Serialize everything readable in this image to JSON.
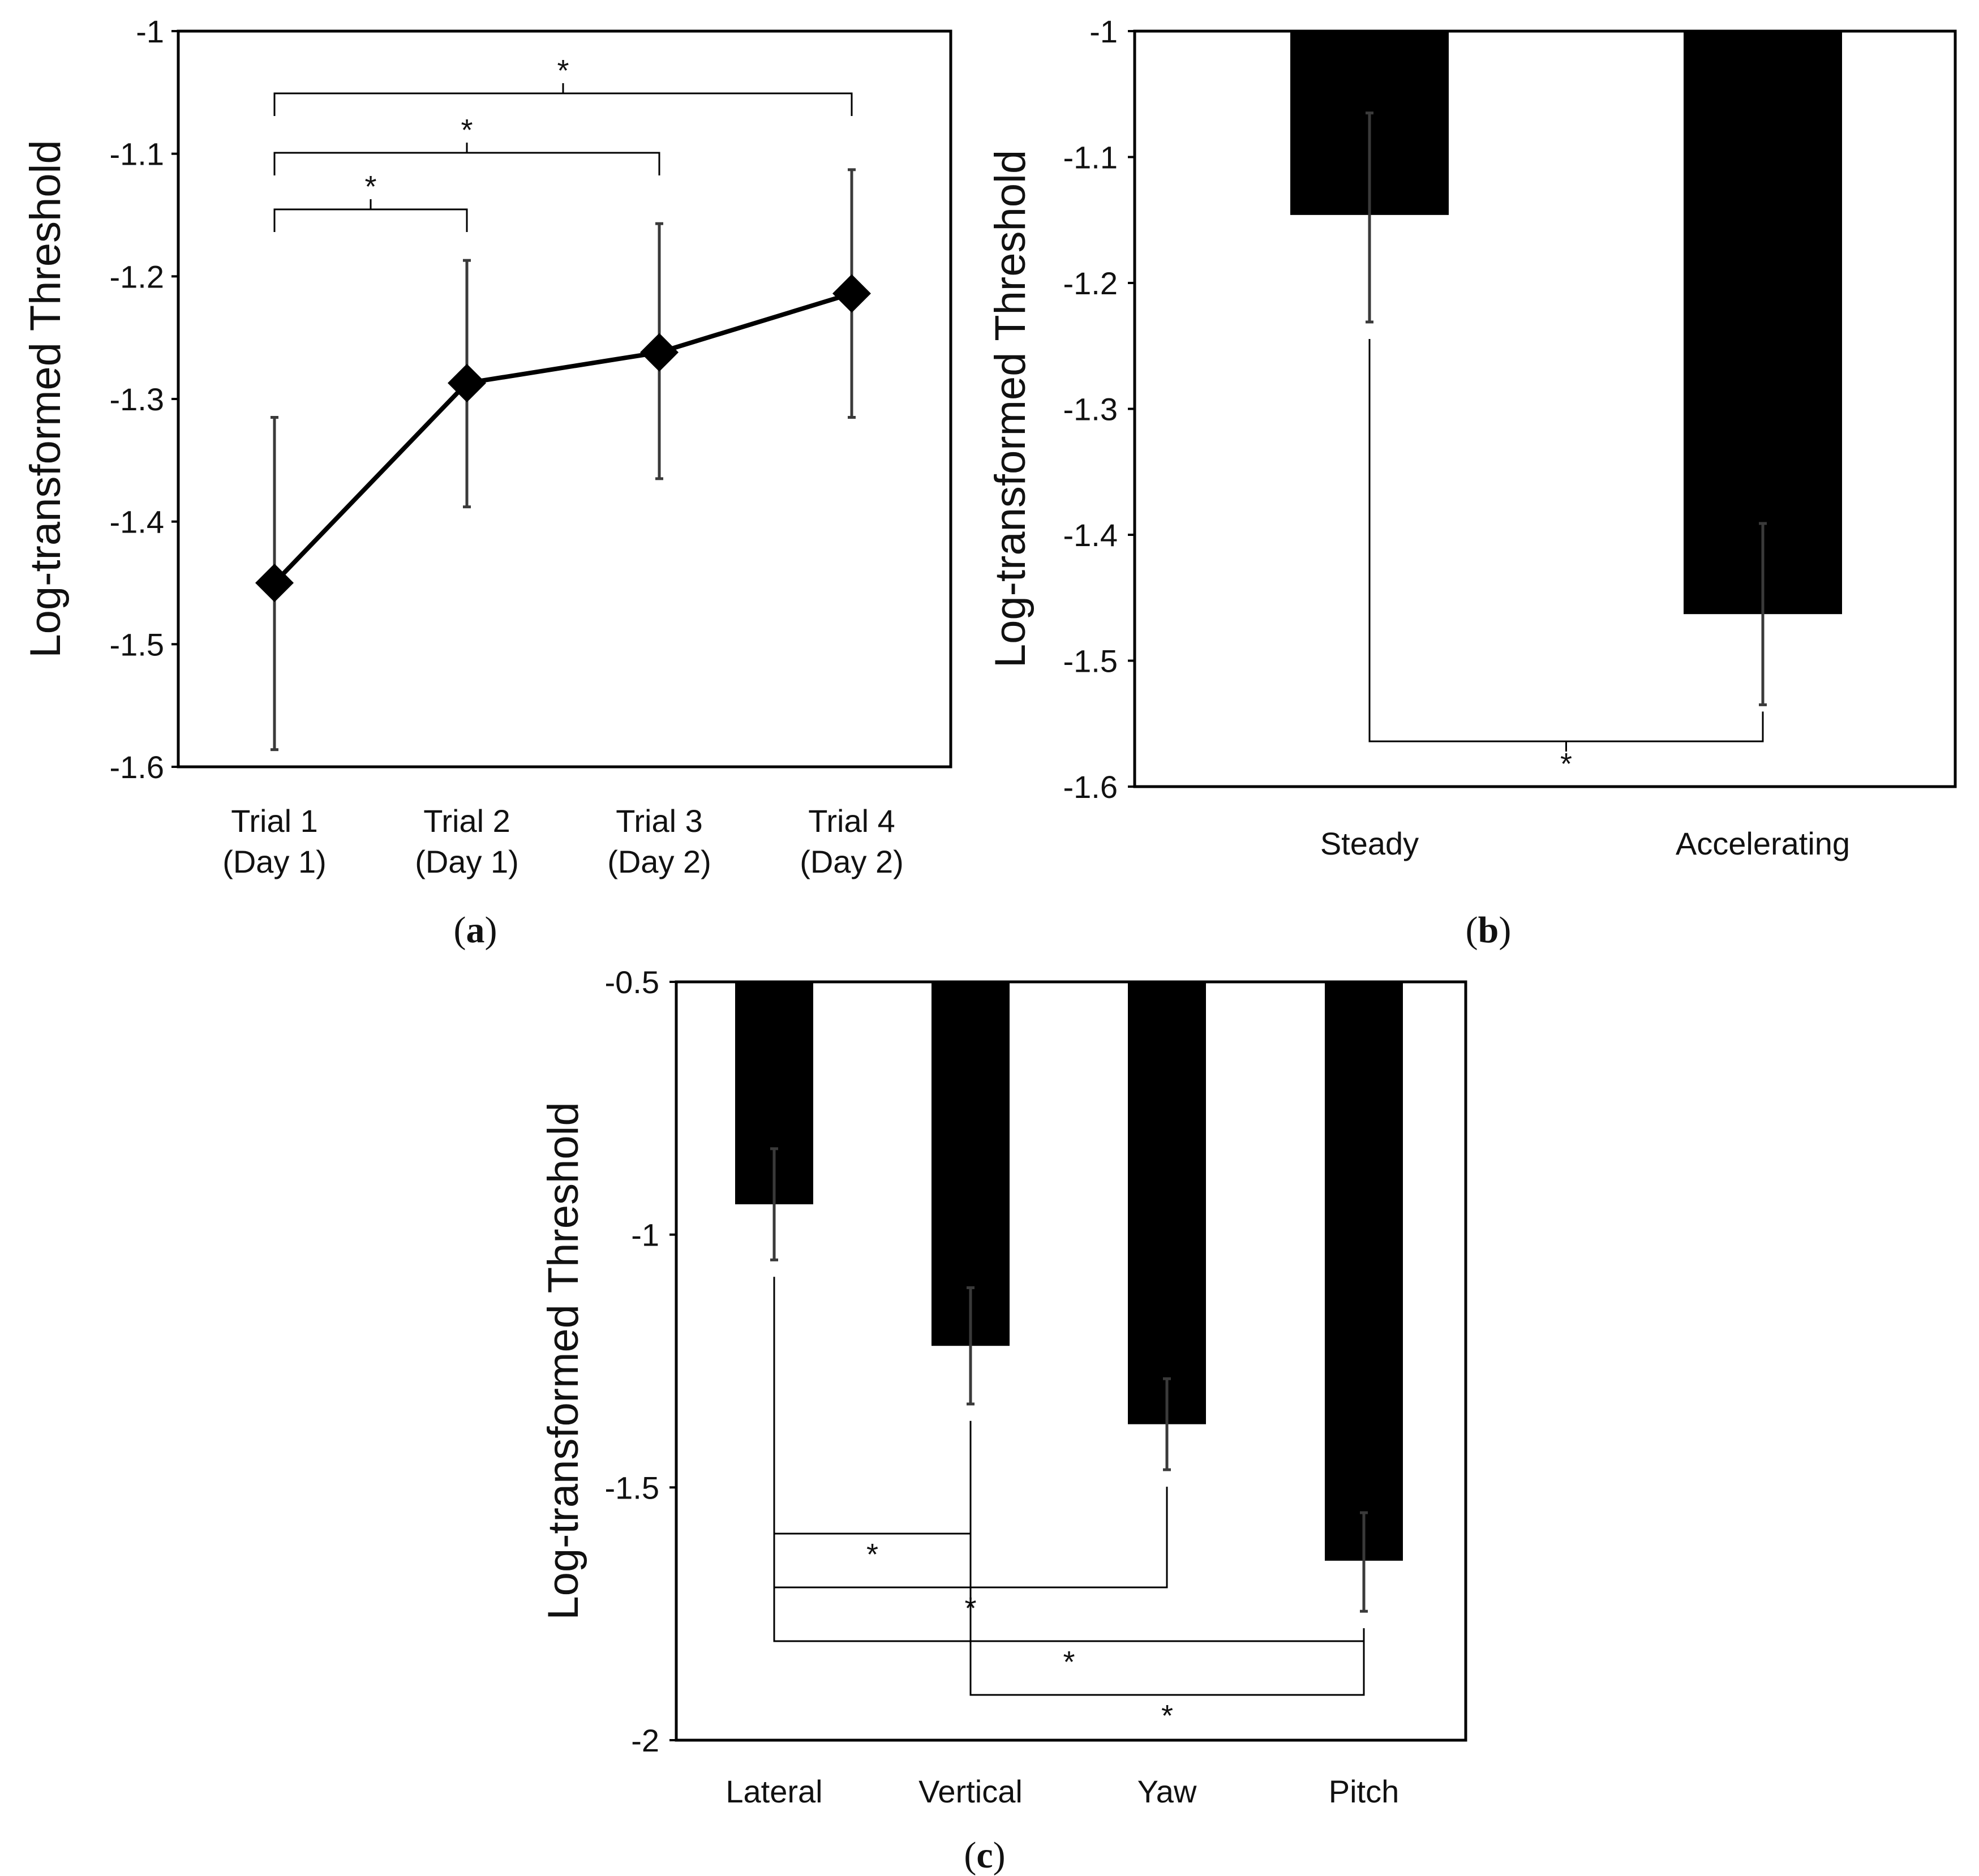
{
  "chart_data": [
    {
      "type": "line",
      "panel_label": "a",
      "title": "",
      "xlabel": "",
      "ylabel": "Log-transformed Threshold",
      "categories": [
        [
          "Trial 1",
          "(Day 1)"
        ],
        [
          "Trial 2",
          "(Day 1)"
        ],
        [
          "Trial 3",
          "(Day 2)"
        ],
        [
          "Trial 4",
          "(Day 2)"
        ]
      ],
      "values": [
        -1.45,
        -1.287,
        -1.262,
        -1.214
      ],
      "error_low": [
        -1.586,
        -1.388,
        -1.365,
        -1.315
      ],
      "error_high": [
        -1.315,
        -1.187,
        -1.157,
        -1.113
      ],
      "ylim": [
        -1.6,
        -1.0
      ],
      "yticks": [
        -1,
        -1.1,
        -1.2,
        -1.3,
        -1.4,
        -1.5,
        -1.6
      ],
      "ytick_labels": [
        "-1",
        "-1.1",
        "-1.2",
        "-1.3",
        "-1.4",
        "-1.5",
        "-1.6"
      ],
      "significance": [
        {
          "from": 0,
          "to": 1,
          "label": "*"
        },
        {
          "from": 0,
          "to": 2,
          "label": "*"
        },
        {
          "from": 0,
          "to": 3,
          "label": "*"
        }
      ]
    },
    {
      "type": "bar",
      "panel_label": "b",
      "title": "",
      "xlabel": "",
      "ylabel": "Log-transformed Threshold",
      "categories": [
        [
          "Steady"
        ],
        [
          "Accelerating"
        ]
      ],
      "values": [
        -1.146,
        -1.463
      ],
      "error_low": [
        -1.231,
        -1.535
      ],
      "error_high": [
        -1.065,
        -1.391
      ],
      "ylim": [
        -1.6,
        -1.0
      ],
      "yticks": [
        -1,
        -1.1,
        -1.2,
        -1.3,
        -1.4,
        -1.5,
        -1.6
      ],
      "ytick_labels": [
        "-1",
        "-1.1",
        "-1.2",
        "-1.3",
        "-1.4",
        "-1.5",
        "-1.6"
      ],
      "significance": [
        {
          "from": 0,
          "to": 1,
          "label": "*"
        }
      ]
    },
    {
      "type": "bar",
      "panel_label": "c",
      "title": "",
      "xlabel": "",
      "ylabel": "Log-transformed Threshold",
      "categories": [
        [
          "Lateral"
        ],
        [
          "Vertical"
        ],
        [
          "Yaw"
        ],
        [
          "Pitch"
        ]
      ],
      "values": [
        -0.94,
        -1.22,
        -1.375,
        -1.645
      ],
      "error_low": [
        -1.05,
        -1.335,
        -1.465,
        -1.745
      ],
      "error_high": [
        -0.83,
        -1.105,
        -1.285,
        -1.55
      ],
      "ylim": [
        -2.0,
        -0.5
      ],
      "yticks": [
        -0.5,
        -1,
        -1.5,
        -2
      ],
      "ytick_labels": [
        "-0.5",
        "-1",
        "-1.5",
        "-2"
      ],
      "significance": [
        {
          "from": 0,
          "to": 1,
          "label": "*"
        },
        {
          "from": 0,
          "to": 2,
          "label": "*"
        },
        {
          "from": 0,
          "to": 3,
          "label": "*"
        },
        {
          "from": 1,
          "to": 3,
          "label": "*"
        }
      ]
    }
  ]
}
